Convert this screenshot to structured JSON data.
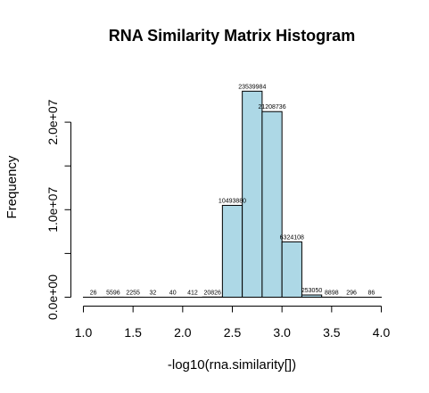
{
  "chart_data": {
    "type": "bar",
    "title": "RNA Similarity Matrix Histogram",
    "xlabel": "-log10(rna.similarity[])",
    "ylabel": "Frequency",
    "bar_color": "#add8e6",
    "border_color": "#000000",
    "bin_width": 0.2,
    "bins": [
      {
        "start": 1.0,
        "end": 1.2,
        "count": 26,
        "label": "26"
      },
      {
        "start": 1.2,
        "end": 1.4,
        "count": 5596,
        "label": "5596"
      },
      {
        "start": 1.4,
        "end": 1.6,
        "count": 2255,
        "label": "2255"
      },
      {
        "start": 1.6,
        "end": 1.8,
        "count": 32,
        "label": "32"
      },
      {
        "start": 1.8,
        "end": 2.0,
        "count": 40,
        "label": "40"
      },
      {
        "start": 2.0,
        "end": 2.2,
        "count": 412,
        "label": "412"
      },
      {
        "start": 2.2,
        "end": 2.4,
        "count": 20826,
        "label": "20826"
      },
      {
        "start": 2.4,
        "end": 2.6,
        "count": 10493880,
        "label": "10493880"
      },
      {
        "start": 2.6,
        "end": 2.8,
        "count": 23539984,
        "label": "23539984"
      },
      {
        "start": 2.8,
        "end": 3.0,
        "count": 21208736,
        "label": "21208736"
      },
      {
        "start": 3.0,
        "end": 3.2,
        "count": 6324108,
        "label": "6324108"
      },
      {
        "start": 3.2,
        "end": 3.4,
        "count": 253050,
        "label": "253050"
      },
      {
        "start": 3.4,
        "end": 3.6,
        "count": 8898,
        "label": "8898"
      },
      {
        "start": 3.6,
        "end": 3.8,
        "count": 296,
        "label": "296"
      },
      {
        "start": 3.8,
        "end": 4.0,
        "count": 86,
        "label": "86"
      }
    ],
    "x_ticks": [
      {
        "value": 1.0,
        "label": "1.0"
      },
      {
        "value": 1.5,
        "label": "1.5"
      },
      {
        "value": 2.0,
        "label": "2.0"
      },
      {
        "value": 2.5,
        "label": "2.5"
      },
      {
        "value": 3.0,
        "label": "3.0"
      },
      {
        "value": 3.5,
        "label": "3.5"
      },
      {
        "value": 4.0,
        "label": "4.0"
      }
    ],
    "y_ticks": [
      {
        "value": 0,
        "label": "0.0e+00"
      },
      {
        "value": 5000000,
        "label": ""
      },
      {
        "value": 10000000,
        "label": "1.0e+07"
      },
      {
        "value": 15000000,
        "label": ""
      },
      {
        "value": 20000000,
        "label": "2.0e+07"
      }
    ],
    "xlim": [
      1.0,
      4.0
    ],
    "ylim": [
      0,
      25000000
    ],
    "grid": false
  }
}
